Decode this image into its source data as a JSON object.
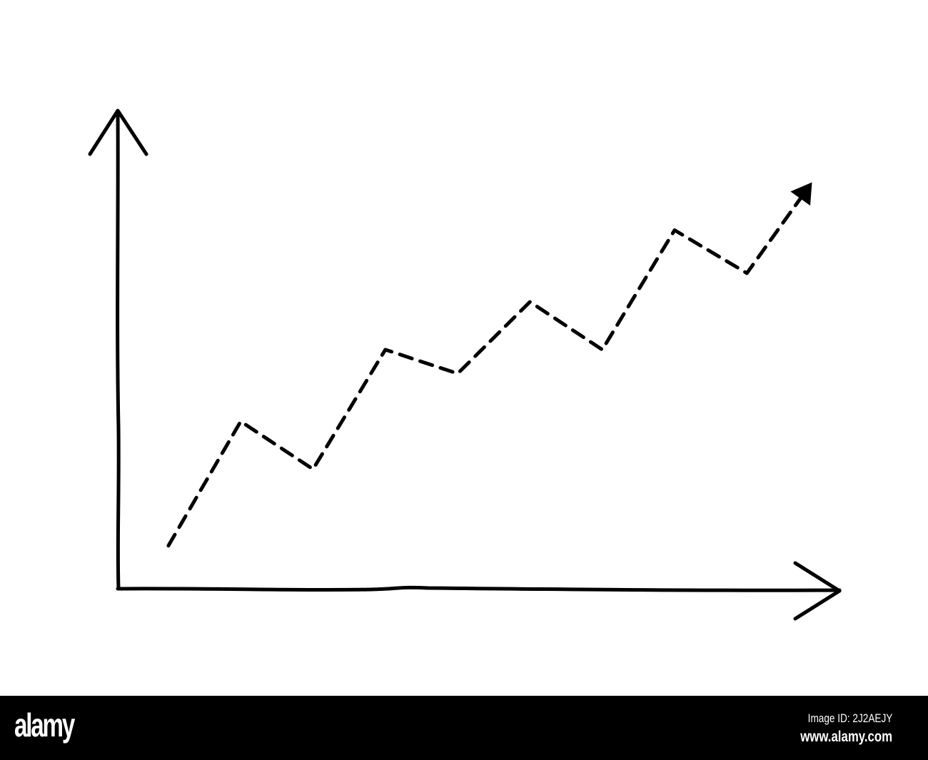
{
  "chart_data": {
    "type": "line",
    "style": "hand-drawn dashed line with arrowhead on axes without ticks or labels",
    "title": "",
    "xlabel": "",
    "ylabel": "",
    "xlim": [
      0,
      100
    ],
    "ylim": [
      0,
      100
    ],
    "grid": false,
    "legend": "none",
    "series": [
      {
        "x": [
          7,
          17,
          27,
          37,
          47,
          57,
          67,
          77,
          87,
          96
        ],
        "y": [
          9,
          35,
          25,
          50,
          45,
          60,
          50,
          75,
          66,
          85
        ]
      }
    ],
    "colors": {
      "line": "#000000",
      "axes": "#000000",
      "background": "#ffffff"
    }
  },
  "footer": {
    "logo": "alamy",
    "image_id": "Image ID: 2J2AEJY",
    "website": "www.alamy.com",
    "background": "#000000"
  }
}
